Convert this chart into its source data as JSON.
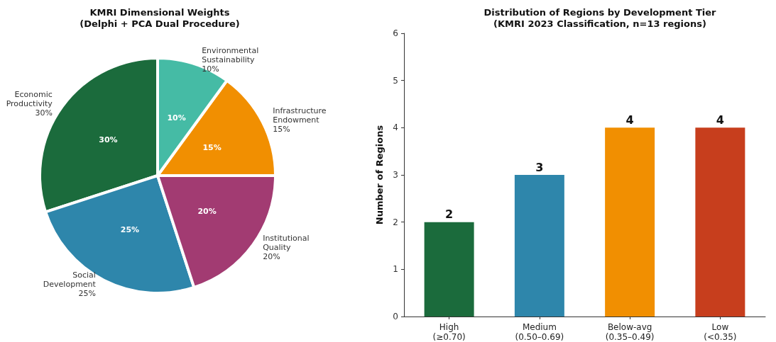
{
  "chart_data": [
    {
      "type": "pie",
      "title": "KMRI Dimensional Weights\n(Delphi + PCA Dual Procedure)",
      "categories": [
        "Economic\nProductivity",
        "Social\nDevelopment",
        "Institutional\nQuality",
        "Infrastructure\nEndowment",
        "Environmental\nSustainability"
      ],
      "values": [
        30,
        25,
        20,
        15,
        10
      ],
      "value_labels": [
        "30%",
        "25%",
        "20%",
        "15%",
        "10%"
      ],
      "colors": [
        "#1b6b3c",
        "#2e86ab",
        "#a23b72",
        "#f18f01",
        "#45bba5"
      ]
    },
    {
      "type": "bar",
      "title": "Distribution of Regions by Development Tier\n(KMRI 2023 Classification, n=13 regions)",
      "ylabel": "Number of Regions",
      "categories": [
        "High\n(≥0.70)",
        "Medium\n(0.50–0.69)",
        "Below-avg\n(0.35–0.49)",
        "Low\n(<0.35)"
      ],
      "values": [
        2,
        3,
        4,
        4
      ],
      "colors": [
        "#1b6b3c",
        "#2e86ab",
        "#f18f01",
        "#c73e1d"
      ],
      "ylim": [
        0,
        6
      ],
      "yticks": [
        0,
        1,
        2,
        3,
        4,
        5,
        6
      ],
      "data_labels": true,
      "grid": false
    }
  ]
}
